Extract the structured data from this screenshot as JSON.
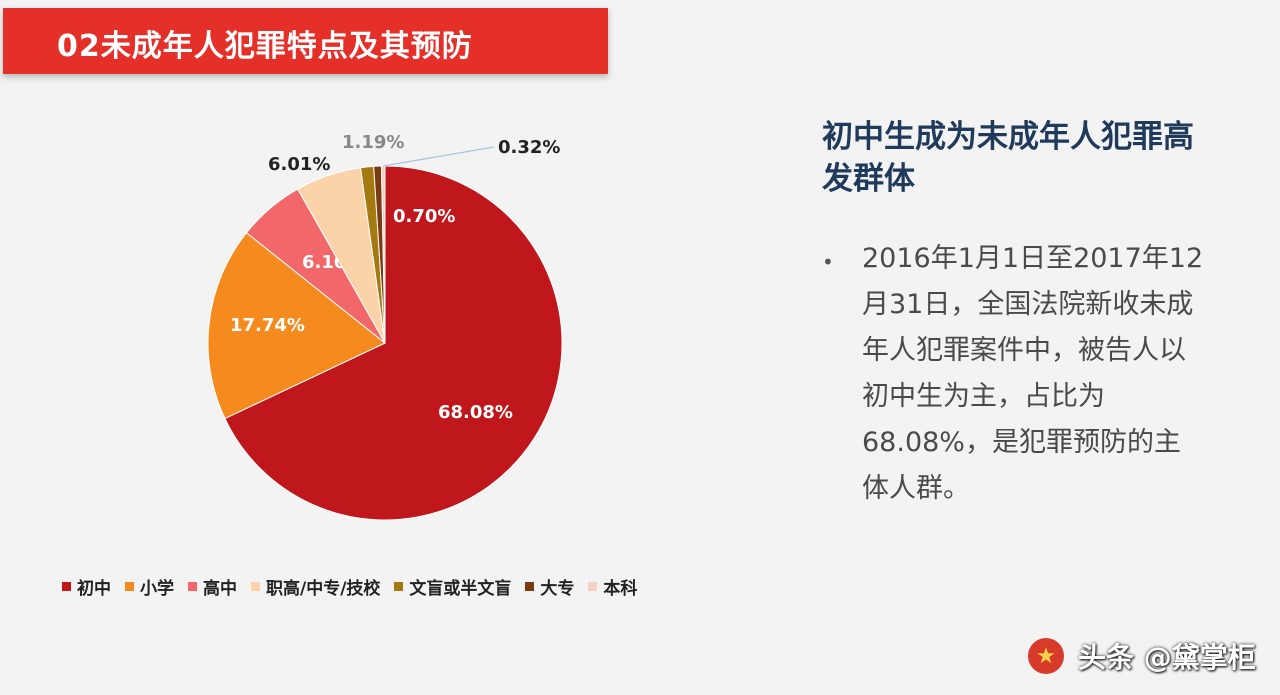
{
  "header": {
    "title": "02未成年人犯罪特点及其预防"
  },
  "chart_data": {
    "type": "pie",
    "series": [
      {
        "name": "初中",
        "value": 68.08,
        "label": "68.08%",
        "color": "#c0171c"
      },
      {
        "name": "小学",
        "value": 17.74,
        "label": "17.74%",
        "color": "#f58a1e"
      },
      {
        "name": "高中",
        "value": 6.1,
        "label": "6.10%",
        "color": "#f2676a"
      },
      {
        "name": "职高/中专/技校",
        "value": 6.01,
        "label": "6.01%",
        "color": "#fbd3a8"
      },
      {
        "name": "文盲或半文盲",
        "value": 1.19,
        "label": "1.19%",
        "color": "#a47a10"
      },
      {
        "name": "大专",
        "value": 0.7,
        "label": "0.70%",
        "color": "#7a3a12"
      },
      {
        "name": "本科",
        "value": 0.32,
        "label": "0.32%",
        "color": "#f6cfc7"
      }
    ]
  },
  "side": {
    "headline": "初中生成为未成年人犯罪高发群体",
    "bullet": "•",
    "body": "2016年1月1日至2017年12月31日，全国法院新收未成年人犯罪案件中，被告人以初中生为主，占比为68.08%，是犯罪预防的主体人群。"
  },
  "watermark": {
    "text": "头条 @黛掌柜",
    "emblem": "emblem-icon"
  }
}
